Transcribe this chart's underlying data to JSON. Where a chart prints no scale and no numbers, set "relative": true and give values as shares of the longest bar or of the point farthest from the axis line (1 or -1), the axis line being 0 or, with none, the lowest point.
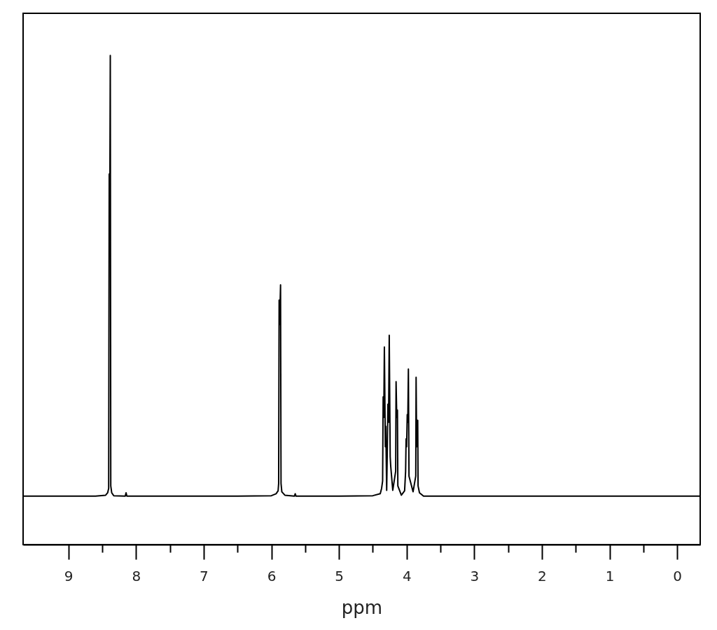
{
  "chart_data": {
    "type": "line",
    "xlabel": "ppm",
    "relative": true,
    "color": "#000000",
    "x": [
      9.67,
      9.0,
      8.6,
      8.45,
      8.42,
      8.405,
      8.397,
      8.39,
      8.381,
      8.374,
      8.36,
      8.33,
      8.16,
      8.148,
      8.136,
      7.5,
      6.5,
      6.0,
      5.93,
      5.9,
      5.892,
      5.885,
      5.878,
      5.864,
      5.857,
      5.845,
      5.8,
      5.66,
      5.647,
      5.635,
      5.0,
      4.5,
      4.39,
      4.37,
      4.355,
      4.347,
      4.338,
      4.329,
      4.315,
      4.308,
      4.295,
      4.285,
      4.277,
      4.267,
      4.257,
      4.243,
      4.235,
      4.205,
      4.162,
      4.156,
      4.146,
      4.136,
      4.13,
      4.078,
      4.03,
      4.015,
      4.008,
      4.0,
      3.991,
      3.983,
      3.974,
      3.965,
      3.905,
      3.865,
      3.86,
      3.852,
      3.845,
      3.836,
      3.831,
      3.81,
      3.75,
      3.0,
      2.0,
      1.0,
      0.0,
      -0.34
    ],
    "values": [
      0.099,
      0.099,
      0.099,
      0.101,
      0.106,
      0.115,
      0.758,
      0.62,
      1.0,
      0.12,
      0.106,
      0.1,
      0.099,
      0.106,
      0.099,
      0.099,
      0.099,
      0.1,
      0.104,
      0.11,
      0.125,
      0.5,
      0.45,
      0.531,
      0.125,
      0.108,
      0.101,
      0.099,
      0.104,
      0.099,
      0.099,
      0.1,
      0.104,
      0.115,
      0.13,
      0.302,
      0.26,
      0.404,
      0.2,
      0.242,
      0.111,
      0.2,
      0.287,
      0.25,
      0.428,
      0.18,
      0.16,
      0.111,
      0.15,
      0.333,
      0.26,
      0.275,
      0.12,
      0.101,
      0.11,
      0.15,
      0.216,
      0.2,
      0.266,
      0.25,
      0.359,
      0.14,
      0.108,
      0.14,
      0.342,
      0.2,
      0.254,
      0.254,
      0.12,
      0.106,
      0.099,
      0.099,
      0.099,
      0.099,
      0.099,
      0.099
    ],
    "xlim": [
      9.67,
      -0.34
    ],
    "xticks": [
      9,
      {
        "value": 8.5,
        "label": null
      },
      8,
      {
        "value": 7.5,
        "label": null
      },
      7,
      {
        "value": 6.5,
        "label": null
      },
      6,
      {
        "value": 5.5,
        "label": null
      },
      5,
      {
        "value": 4.5,
        "label": null
      },
      4,
      {
        "value": 3.5,
        "label": null
      },
      3,
      {
        "value": 2.5,
        "label": null
      },
      2,
      {
        "value": 1.5,
        "label": null
      },
      1,
      {
        "value": 0.5,
        "label": null
      },
      0
    ]
  }
}
